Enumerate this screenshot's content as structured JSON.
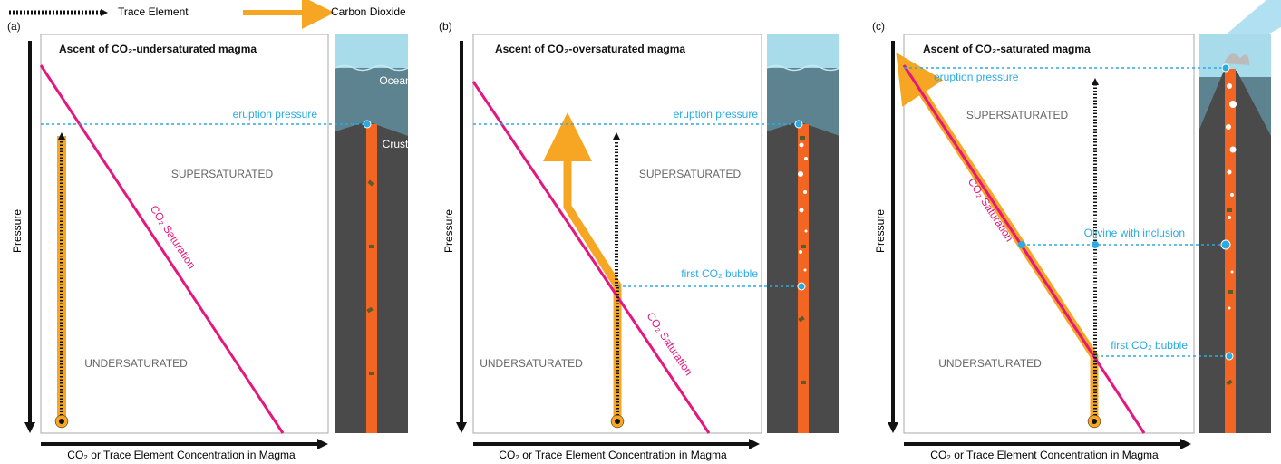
{
  "legend": {
    "trace_element": "Trace Element",
    "carbon_dioxide": "Carbon Dioxide"
  },
  "panels": [
    {
      "label": "(a)",
      "title": "Ascent of CO₂-undersaturated magma",
      "eruption_pressure": "eruption pressure",
      "supersaturated": "SUPERSATURATED",
      "undersaturated": "UNDERSATURATED",
      "saturation": "CO₂ Saturation",
      "ocean": "Ocean",
      "crust": "Crust",
      "y_axis": "Pressure",
      "x_axis": "CO₂ or Trace Element Concentration in Magma"
    },
    {
      "label": "(b)",
      "title": "Ascent of CO₂-oversaturated magma",
      "eruption_pressure": "eruption pressure",
      "first_bubble": "first CO₂ bubble",
      "supersaturated": "SUPERSATURATED",
      "undersaturated": "UNDERSATURATED",
      "saturation": "CO₂ Saturation",
      "y_axis": "Pressure",
      "x_axis": "CO₂ or Trace Element Concentration in Magma"
    },
    {
      "label": "(c)",
      "title": "Ascent of CO₂-saturated magma",
      "eruption_pressure": "eruption pressure",
      "supersaturated": "SUPERSATURATED",
      "olivine": "Olivine with inclusion",
      "first_bubble": "first CO₂ bubble",
      "undersaturated": "UNDERSATURATED",
      "saturation": "CO₂ Saturation",
      "y_axis": "Pressure",
      "x_axis": "CO₂ or Trace Element Concentration in Magma"
    }
  ]
}
